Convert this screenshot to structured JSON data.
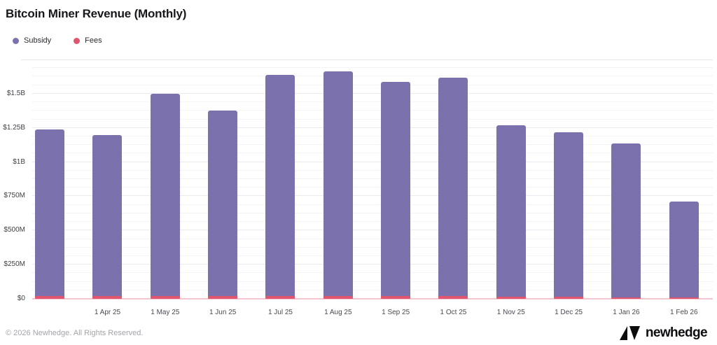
{
  "page": {
    "background": "#ffffff"
  },
  "footer": {
    "copyright": "© 2026 Newhedge. All Rights Reserved.",
    "brand": "newhedge"
  },
  "chart_data": {
    "type": "bar",
    "stacked": true,
    "title": "Bitcoin Miner Revenue (Monthly)",
    "units": "USD millions",
    "legend_position": "top-left",
    "categories": [
      "",
      "1 Apr 25",
      "1 May 25",
      "1 Jun 25",
      "1 Jul 25",
      "1 Aug 25",
      "1 Sep 25",
      "1 Oct 25",
      "1 Nov 25",
      "1 Dec 25",
      "1 Jan 26",
      "1 Feb 26"
    ],
    "series": [
      {
        "name": "Subsidy",
        "color": "#7a71ad",
        "values": [
          1220,
          1175,
          1480,
          1355,
          1620,
          1645,
          1567,
          1597,
          1255,
          1205,
          1123,
          702
        ]
      },
      {
        "name": "Fees",
        "color": "#e0566f",
        "values": [
          20,
          20,
          20,
          20,
          20,
          20,
          18,
          18,
          15,
          15,
          12,
          8
        ]
      }
    ],
    "ylim": [
      0,
      1750
    ],
    "yticks": [
      {
        "value": 0,
        "label": "$0"
      },
      {
        "value": 250,
        "label": "$250M"
      },
      {
        "value": 500,
        "label": "$500M"
      },
      {
        "value": 750,
        "label": "$750M"
      },
      {
        "value": 1000,
        "label": "$1B"
      },
      {
        "value": 1250,
        "label": "$1.25B"
      },
      {
        "value": 1500,
        "label": "$1.5B"
      }
    ],
    "grid": {
      "minor_step": 62.5,
      "minor_color": "#f4f4f6",
      "major_color": "#ebebef",
      "baseline_color": "#f3c5ce"
    }
  }
}
